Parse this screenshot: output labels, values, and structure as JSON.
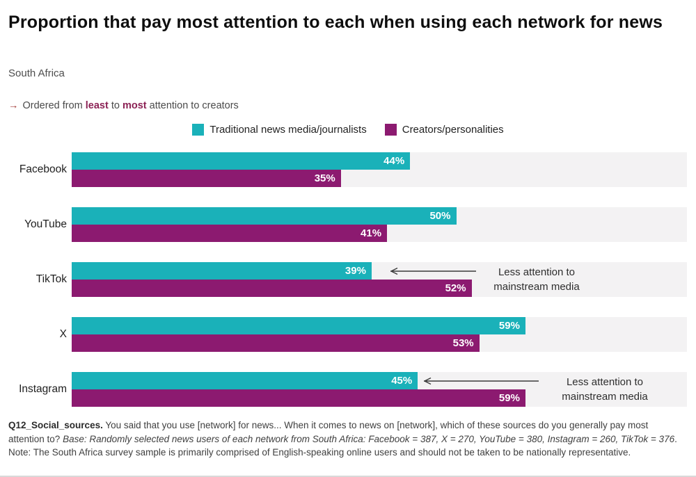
{
  "title": "Proportion that pay most attention to each when using each network for news",
  "subtitle": "South Africa",
  "ordering_note": {
    "arrow": "→",
    "part1": "Ordered from ",
    "emphasis1": "least",
    "part2": " to ",
    "emphasis2": "most",
    "part3": " attention to creators"
  },
  "legend": {
    "items": [
      {
        "label": "Traditional news media/journalists",
        "color": "#1ab1b9"
      },
      {
        "label": "Creators/personalities",
        "color": "#8c1a70"
      }
    ]
  },
  "chart_data": {
    "type": "bar",
    "orientation": "horizontal",
    "categories": [
      "Facebook",
      "YouTube",
      "TikTok",
      "X",
      "Instagram"
    ],
    "series": [
      {
        "name": "Traditional news media/journalists",
        "color": "#1ab1b9",
        "values": [
          44,
          50,
          39,
          59,
          45
        ]
      },
      {
        "name": "Creators/personalities",
        "color": "#8c1a70",
        "values": [
          35,
          41,
          52,
          53,
          59
        ]
      }
    ],
    "value_suffix": "%",
    "xlim": [
      0,
      80
    ],
    "grid": false,
    "track_color": "#f3f2f3",
    "legend_position": "top-center",
    "annotations": [
      {
        "target": "TikTok",
        "series": "Traditional news media/journalists",
        "line1": "Less attention to",
        "line2": "mainstream media"
      },
      {
        "target": "Instagram",
        "series": "Traditional news media/journalists",
        "line1": "Less attention to",
        "line2": "mainstream media"
      }
    ]
  },
  "footnote": {
    "bold": "Q12_Social_sources.",
    "normal1": " You said that you use [network] for news... When it comes to news on [network], which of these sources do you generally pay most attention to? ",
    "italic": "Base: Randomly selected news users of each network from South Africa: Facebook = 387, X = 270, YouTube = 380, Instagram = 260, TikTok = 376",
    "normal2": ". Note: The South Africa survey sample is primarily comprised of English-speaking online users and should not be taken to be nationally representative."
  }
}
